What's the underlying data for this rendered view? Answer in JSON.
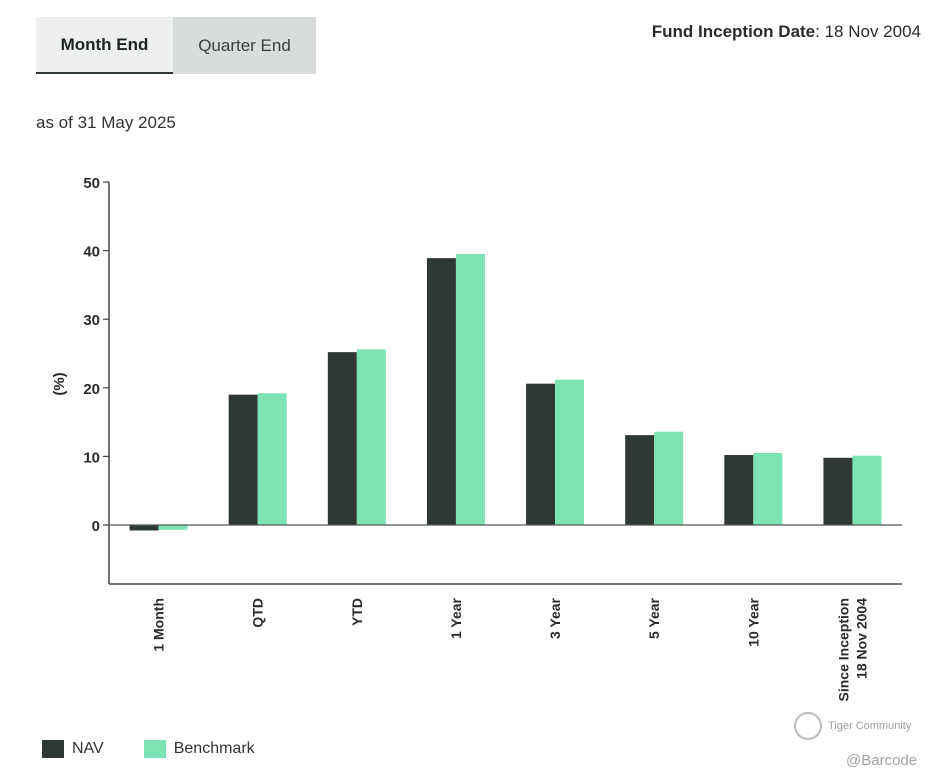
{
  "tabs": [
    {
      "label": "Month End",
      "active": true
    },
    {
      "label": "Quarter End",
      "active": false
    }
  ],
  "inception": {
    "label": "Fund Inception Date",
    "value": ": 18 Nov 2004"
  },
  "as_of": "as of 31 May 2025",
  "chart_data": {
    "type": "bar",
    "ylabel": "(%)",
    "ylim": [
      -8.5,
      50
    ],
    "yticks": [
      0,
      10,
      20,
      30,
      40,
      50
    ],
    "categories": [
      [
        "1 Month"
      ],
      [
        "QTD"
      ],
      [
        "YTD"
      ],
      [
        "1 Year"
      ],
      [
        "3 Year"
      ],
      [
        "5 Year"
      ],
      [
        "10 Year"
      ],
      [
        "Since Inception",
        "18 Nov 2004"
      ]
    ],
    "series": [
      {
        "name": "NAV",
        "color": "#2f3833",
        "values": [
          -0.8,
          19.0,
          25.2,
          38.9,
          20.6,
          13.1,
          10.2,
          9.8
        ]
      },
      {
        "name": "Benchmark",
        "color": "#7de3b5",
        "values": [
          -0.7,
          19.2,
          25.6,
          39.5,
          21.2,
          13.6,
          10.5,
          10.1
        ]
      }
    ],
    "legend_position": "bottom-left",
    "grid": false
  },
  "watermark": {
    "brand": "Tiger Community",
    "handle": "@Barcode"
  }
}
